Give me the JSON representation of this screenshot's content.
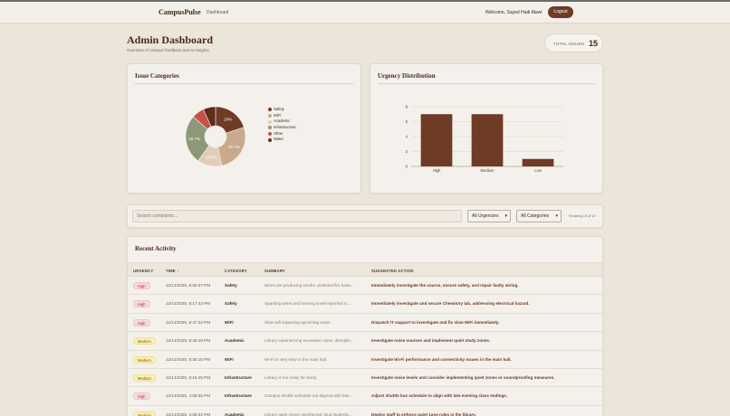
{
  "header": {
    "brand": "CampusPulse",
    "nav_link": "Dashboard",
    "welcome": "Welcome, Sayed Hadi Alawi",
    "logout_label": "Logout"
  },
  "page": {
    "title": "Admin Dashboard",
    "subtitle": "Overview of campus feedback and AI insights",
    "total_label": "TOTAL ISSUES",
    "total_value": "15"
  },
  "categories_card": {
    "title": "Issue Categories"
  },
  "urgency_card": {
    "title": "Urgency Distribution"
  },
  "chart_data": [
    {
      "type": "pie",
      "title": "Issue Categories",
      "donut": true,
      "categories": [
        "Safety",
        "WiFi",
        "Academic",
        "Infrastructure",
        "Other",
        "Water"
      ],
      "values": [
        20,
        26.7,
        13.3,
        26.7,
        6.7,
        6.7
      ],
      "labels": [
        "20%",
        "26.7%",
        "13.3%",
        "26.7%",
        "",
        ""
      ],
      "colors": [
        "#6e3b25",
        "#c9aa8a",
        "#e0cdb8",
        "#8c9877",
        "#c2524a",
        "#5c2d1a"
      ],
      "legend": "right"
    },
    {
      "type": "bar",
      "title": "Urgency Distribution",
      "categories": [
        "High",
        "Medium",
        "Low"
      ],
      "values": [
        7,
        7,
        1
      ],
      "ylim": [
        0,
        8
      ],
      "yticks": [
        0,
        2,
        4,
        6,
        8
      ],
      "grid": true,
      "color": "#6e3b25"
    }
  ],
  "filters": {
    "search_placeholder": "Search complaints...",
    "urgency_select": "All Urgencies",
    "category_select": "All Categories",
    "showing": "Showing 15 of 15"
  },
  "activity": {
    "title": "Recent Activity",
    "columns": {
      "urgency": "URGENCY",
      "time": "TIME ↓",
      "category": "CATEGORY",
      "summary": "SUMMARY",
      "action": "SUGGESTED ACTION"
    },
    "rows": [
      {
        "urgency": "High",
        "time": "12/14/2025, 9:56:37 PM",
        "category": "Safety",
        "summary": "Wires are producing smoke, potential fire haza...",
        "action": "Immediately investigate the source, ensure safety, and repair faulty wiring."
      },
      {
        "urgency": "High",
        "time": "12/14/2025, 9:17:43 PM",
        "category": "Safety",
        "summary": "Sparking wires and burning smell reported in ...",
        "action": "Immediately investigate and secure Chemistry lab, addressing electrical hazard."
      },
      {
        "urgency": "High",
        "time": "12/14/2025, 8:47:32 PM",
        "category": "WiFi",
        "summary": "Slow wifi impacting upcoming exam.",
        "action": "Dispatch IT support to investigate and fix slow WiFi immediately."
      },
      {
        "urgency": "Medium",
        "time": "12/14/2025, 8:46:48 PM",
        "category": "Academic",
        "summary": "Library experiencing excessive noise, disruptin...",
        "action": "Investigate noise sources and implement quiet study zones."
      },
      {
        "urgency": "Medium",
        "time": "12/14/2025, 8:45:15 PM",
        "category": "WiFi",
        "summary": "Wi-Fi is very slow in the main hall.",
        "action": "Investigate Wi-Fi performance and connectivity issues in the main hall."
      },
      {
        "urgency": "Medium",
        "time": "12/14/2025, 8:16:46 PM",
        "category": "Infrastructure",
        "summary": "Library is too noisy for study.",
        "action": "Investigate noise levels and consider implementing quiet zones or soundproofing measures."
      },
      {
        "urgency": "High",
        "time": "12/14/2025, 4:58:35 PM",
        "category": "Infrastructure",
        "summary": "Campus shuttle schedule not aligned with late...",
        "action": "Adjust shuttle bus schedule to align with late evening class endings."
      },
      {
        "urgency": "Medium",
        "time": "12/14/2025, 4:56:22 PM",
        "category": "Academic",
        "summary": "Library quiet zones unenforced; loud students...",
        "action": "Deploy staff to enforce quiet zone rules in the library."
      }
    ]
  }
}
